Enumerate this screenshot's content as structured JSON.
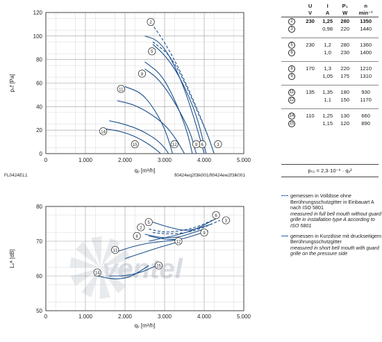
{
  "colors": {
    "curve": "#1a4f8b",
    "grid": "#9a9a9a",
    "axis": "#333333",
    "watermark": "#d9dde3"
  },
  "watermark": "ventel",
  "chart_data": [
    {
      "type": "line",
      "xlabel": "qᵥ [m³/h]",
      "ylabel": "pₛf [Pa]",
      "xlim": [
        0,
        5000
      ],
      "ylim": [
        0,
        120
      ],
      "xticks": [
        "0",
        "1.000",
        "2.000",
        "3.000",
        "4.000",
        "5.000"
      ],
      "yticks": [
        "0",
        "20",
        "40",
        "60",
        "80",
        "100",
        "120"
      ],
      "grid": true,
      "footer_left": "FL0424EL1",
      "footer_right": "fl0424eq2f3lk001/fl0424ew2f3lk001",
      "series": [
        {
          "name": "2",
          "dashed": true,
          "label_at": [
            2650,
            112
          ],
          "points": [
            [
              2600,
              114
            ],
            [
              3000,
              95
            ],
            [
              3400,
              70
            ],
            [
              3800,
              40
            ],
            [
              4100,
              15
            ],
            [
              4250,
              0
            ]
          ]
        },
        {
          "name": "5",
          "dashed": false,
          "label_at": [
            2680,
            87
          ],
          "points": [
            [
              2700,
              93
            ],
            [
              3000,
              84
            ],
            [
              3300,
              70
            ],
            [
              3600,
              50
            ],
            [
              3850,
              28
            ],
            [
              4050,
              0
            ]
          ]
        },
        {
          "name": "6",
          "dashed": false,
          "label_at": [
            3950,
            8
          ],
          "points": [
            [
              2500,
              100
            ],
            [
              2800,
              97
            ],
            [
              3100,
              85
            ],
            [
              3450,
              60
            ],
            [
              3750,
              30
            ],
            [
              4000,
              0
            ]
          ]
        },
        {
          "name": "3",
          "dashed": true,
          "label_at": [
            4350,
            8
          ],
          "points": [
            [
              2700,
              95
            ],
            [
              3100,
              85
            ],
            [
              3450,
              65
            ],
            [
              3800,
              38
            ],
            [
              4100,
              15
            ],
            [
              4250,
              0
            ]
          ]
        },
        {
          "name": "8",
          "dashed": false,
          "label_at": [
            2430,
            68
          ],
          "points": [
            [
              2500,
              72
            ],
            [
              2800,
              65
            ],
            [
              3100,
              52
            ],
            [
              3400,
              35
            ],
            [
              3650,
              18
            ],
            [
              3800,
              0
            ]
          ]
        },
        {
          "name": "9",
          "dashed": false,
          "label_at": [
            3800,
            8
          ],
          "points": [
            [
              2500,
              78
            ],
            [
              2900,
              68
            ],
            [
              3200,
              50
            ],
            [
              3450,
              30
            ],
            [
              3600,
              15
            ],
            [
              3700,
              0
            ]
          ]
        },
        {
          "name": "11",
          "dashed": false,
          "label_at": [
            1900,
            55
          ],
          "points": [
            [
              1800,
              45
            ],
            [
              2200,
              42
            ],
            [
              2600,
              35
            ],
            [
              3000,
              25
            ],
            [
              3300,
              12
            ],
            [
              3500,
              0
            ]
          ]
        },
        {
          "name": "12",
          "dashed": false,
          "label_at": [
            3250,
            8
          ],
          "points": [
            [
              2000,
              57
            ],
            [
              2400,
              52
            ],
            [
              2700,
              40
            ],
            [
              2950,
              25
            ],
            [
              3100,
              12
            ],
            [
              3200,
              0
            ]
          ]
        },
        {
          "name": "14",
          "dashed": false,
          "label_at": [
            1450,
            19
          ],
          "points": [
            [
              1500,
              21
            ],
            [
              1900,
              19
            ],
            [
              2300,
              14
            ],
            [
              2600,
              8
            ],
            [
              2800,
              3
            ],
            [
              2900,
              0
            ]
          ]
        },
        {
          "name": "15",
          "dashed": false,
          "label_at": [
            2250,
            8
          ],
          "points": [
            [
              1600,
              28
            ],
            [
              2000,
              25
            ],
            [
              2400,
              20
            ],
            [
              2800,
              12
            ],
            [
              3000,
              5
            ],
            [
              3100,
              0
            ]
          ]
        }
      ]
    },
    {
      "type": "line",
      "xlabel": "qᵥ [m³/h]",
      "ylabel": "Lᵥᴬ [dB]",
      "xlim": [
        0,
        5000
      ],
      "ylim": [
        50,
        80
      ],
      "xticks": [
        "0",
        "1.000",
        "2.000",
        "3.000",
        "4.000",
        "5.000"
      ],
      "yticks": [
        "50",
        "60",
        "70",
        "80"
      ],
      "grid": true,
      "series": [
        {
          "name": "2",
          "dashed": true,
          "label_at": [
            2400,
            74
          ],
          "points": [
            [
              2600,
              73.5
            ],
            [
              3000,
              72.5
            ],
            [
              3400,
              73
            ],
            [
              3800,
              74
            ],
            [
              4200,
              76
            ]
          ]
        },
        {
          "name": "3",
          "dashed": true,
          "label_at": [
            4550,
            76
          ],
          "points": [
            [
              2700,
              72.5
            ],
            [
              3100,
              72
            ],
            [
              3600,
              72.5
            ],
            [
              4000,
              74
            ],
            [
              4400,
              76
            ]
          ]
        },
        {
          "name": "5",
          "dashed": false,
          "label_at": [
            2600,
            75.5
          ],
          "points": [
            [
              2700,
              75.5
            ],
            [
              3100,
              74
            ],
            [
              3500,
              73
            ],
            [
              3800,
              73.5
            ],
            [
              4200,
              75
            ]
          ]
        },
        {
          "name": "6",
          "dashed": false,
          "label_at": [
            4300,
            77.5
          ],
          "points": [
            [
              2600,
              70
            ],
            [
              3000,
              71
            ],
            [
              3400,
              72
            ],
            [
              3800,
              73.5
            ],
            [
              4300,
              76.5
            ]
          ]
        },
        {
          "name": "8",
          "dashed": false,
          "label_at": [
            2300,
            71.5
          ],
          "points": [
            [
              2500,
              72
            ],
            [
              2900,
              71
            ],
            [
              3300,
              71
            ],
            [
              3600,
              72
            ],
            [
              4000,
              73.5
            ]
          ]
        },
        {
          "name": "9",
          "dashed": false,
          "label_at": [
            4000,
            72.5
          ],
          "points": [
            [
              2600,
              71.5
            ],
            [
              3000,
              70.5
            ],
            [
              3400,
              70.5
            ],
            [
              3700,
              71.5
            ],
            [
              4100,
              73
            ]
          ]
        },
        {
          "name": "11",
          "dashed": false,
          "label_at": [
            1750,
            67.5
          ],
          "points": [
            [
              1800,
              67
            ],
            [
              2200,
              68.5
            ],
            [
              2600,
              69.5
            ],
            [
              3000,
              70
            ],
            [
              3400,
              70.5
            ]
          ]
        },
        {
          "name": "12",
          "dashed": false,
          "label_at": [
            3350,
            70
          ],
          "points": [
            [
              2000,
              65
            ],
            [
              2400,
              66.5
            ],
            [
              2800,
              68
            ],
            [
              3100,
              69
            ],
            [
              3400,
              70
            ]
          ]
        },
        {
          "name": "14",
          "dashed": false,
          "label_at": [
            1300,
            61
          ],
          "points": [
            [
              1300,
              60
            ],
            [
              1700,
              59
            ],
            [
              2100,
              59.5
            ],
            [
              2400,
              61.5
            ],
            [
              2600,
              63
            ]
          ]
        },
        {
          "name": "15",
          "dashed": false,
          "label_at": [
            2850,
            63
          ],
          "points": [
            [
              1600,
              60
            ],
            [
              2000,
              60
            ],
            [
              2400,
              61
            ],
            [
              2700,
              62.5
            ],
            [
              2900,
              63.5
            ]
          ]
        }
      ]
    }
  ],
  "table": {
    "headers": [
      "U",
      "I",
      "P₁",
      "n"
    ],
    "units": [
      "V",
      "A",
      "W",
      "min⁻¹"
    ],
    "rows": [
      {
        "id": "2",
        "U": "230",
        "I": "1,25",
        "P": "280",
        "n": "1350",
        "bold": true
      },
      {
        "id": "3",
        "U": "",
        "I": "0,98",
        "P": "220",
        "n": "1440",
        "bold": false,
        "sep": true
      },
      {
        "id": "5",
        "U": "230",
        "I": "1,2",
        "P": "280",
        "n": "1360"
      },
      {
        "id": "6",
        "U": "",
        "I": "1,0",
        "P": "230",
        "n": "1400",
        "sep": true
      },
      {
        "id": "8",
        "U": "170",
        "I": "1,3",
        "P": "220",
        "n": "1210"
      },
      {
        "id": "9",
        "U": "",
        "I": "1,05",
        "P": "175",
        "n": "1310",
        "sep": true
      },
      {
        "id": "11",
        "U": "135",
        "I": "1,35",
        "P": "180",
        "n": "930"
      },
      {
        "id": "12",
        "U": "",
        "I": "1,1",
        "P": "150",
        "n": "1170",
        "sep": true
      },
      {
        "id": "14",
        "U": "110",
        "I": "1,25",
        "P": "130",
        "n": "660"
      },
      {
        "id": "15",
        "U": "",
        "I": "1,15",
        "P": "120",
        "n": "890"
      }
    ],
    "formula": "pₛ₂ = 2,3·10⁻⁶ · qᵥ²"
  },
  "legend": [
    {
      "style": "dashed",
      "de": "gemessen in Volldüse ohne Berührungsschutzgitter in Einbauart A nach ISO 5801",
      "en": "measured in full bell mouth without guard grille in installation type A according to ISO 5801"
    },
    {
      "style": "solid",
      "de": "gemessen in Kurzdüse mit druckseitigem Berührungsschutzgitter",
      "en": "measured in short bell mouth with guard grille on the pressure side"
    }
  ]
}
